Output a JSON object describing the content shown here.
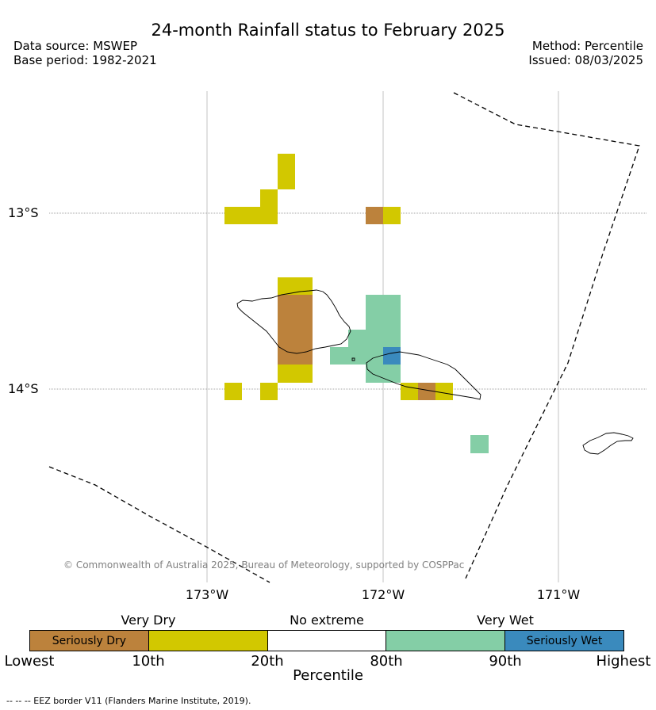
{
  "header": {
    "title": "24-month Rainfall status to February 2025",
    "data_source": "Data source: MSWEP",
    "base_period": "Base period: 1982-2021",
    "method": "Method: Percentile",
    "issued": "Issued: 08/03/2025"
  },
  "map": {
    "lat_labels": [
      "13°S",
      "14°S"
    ],
    "lon_labels": [
      "173°W",
      "172°W",
      "171°W"
    ],
    "copyright": "© Commonwealth of Australia 2025, Bureau of Meteorology, supported by COSPPac",
    "grid_cell_classes": {
      "seriously_dry": "#bc823c",
      "very_dry": "#d2c800",
      "very_wet": "#84cea6",
      "seriously_wet": "#3a8abd"
    },
    "eez_line": "dashed"
  },
  "legend": {
    "categories": [
      "Very Dry",
      "No extreme",
      "Very Wet"
    ],
    "segments": [
      {
        "label": "Seriously Dry",
        "color": "#bc823c"
      },
      {
        "label": "",
        "color": "#d2c800"
      },
      {
        "label": "",
        "color": "#ffffff"
      },
      {
        "label": "",
        "color": "#84cea6"
      },
      {
        "label": "Seriously Wet",
        "color": "#3a8abd"
      }
    ],
    "ticks": [
      "Lowest",
      "10th",
      "20th",
      "80th",
      "90th",
      "Highest"
    ],
    "axis_label": "Percentile"
  },
  "footnote": "--  --  -- EEZ border V11 (Flanders Marine Institute, 2019)."
}
